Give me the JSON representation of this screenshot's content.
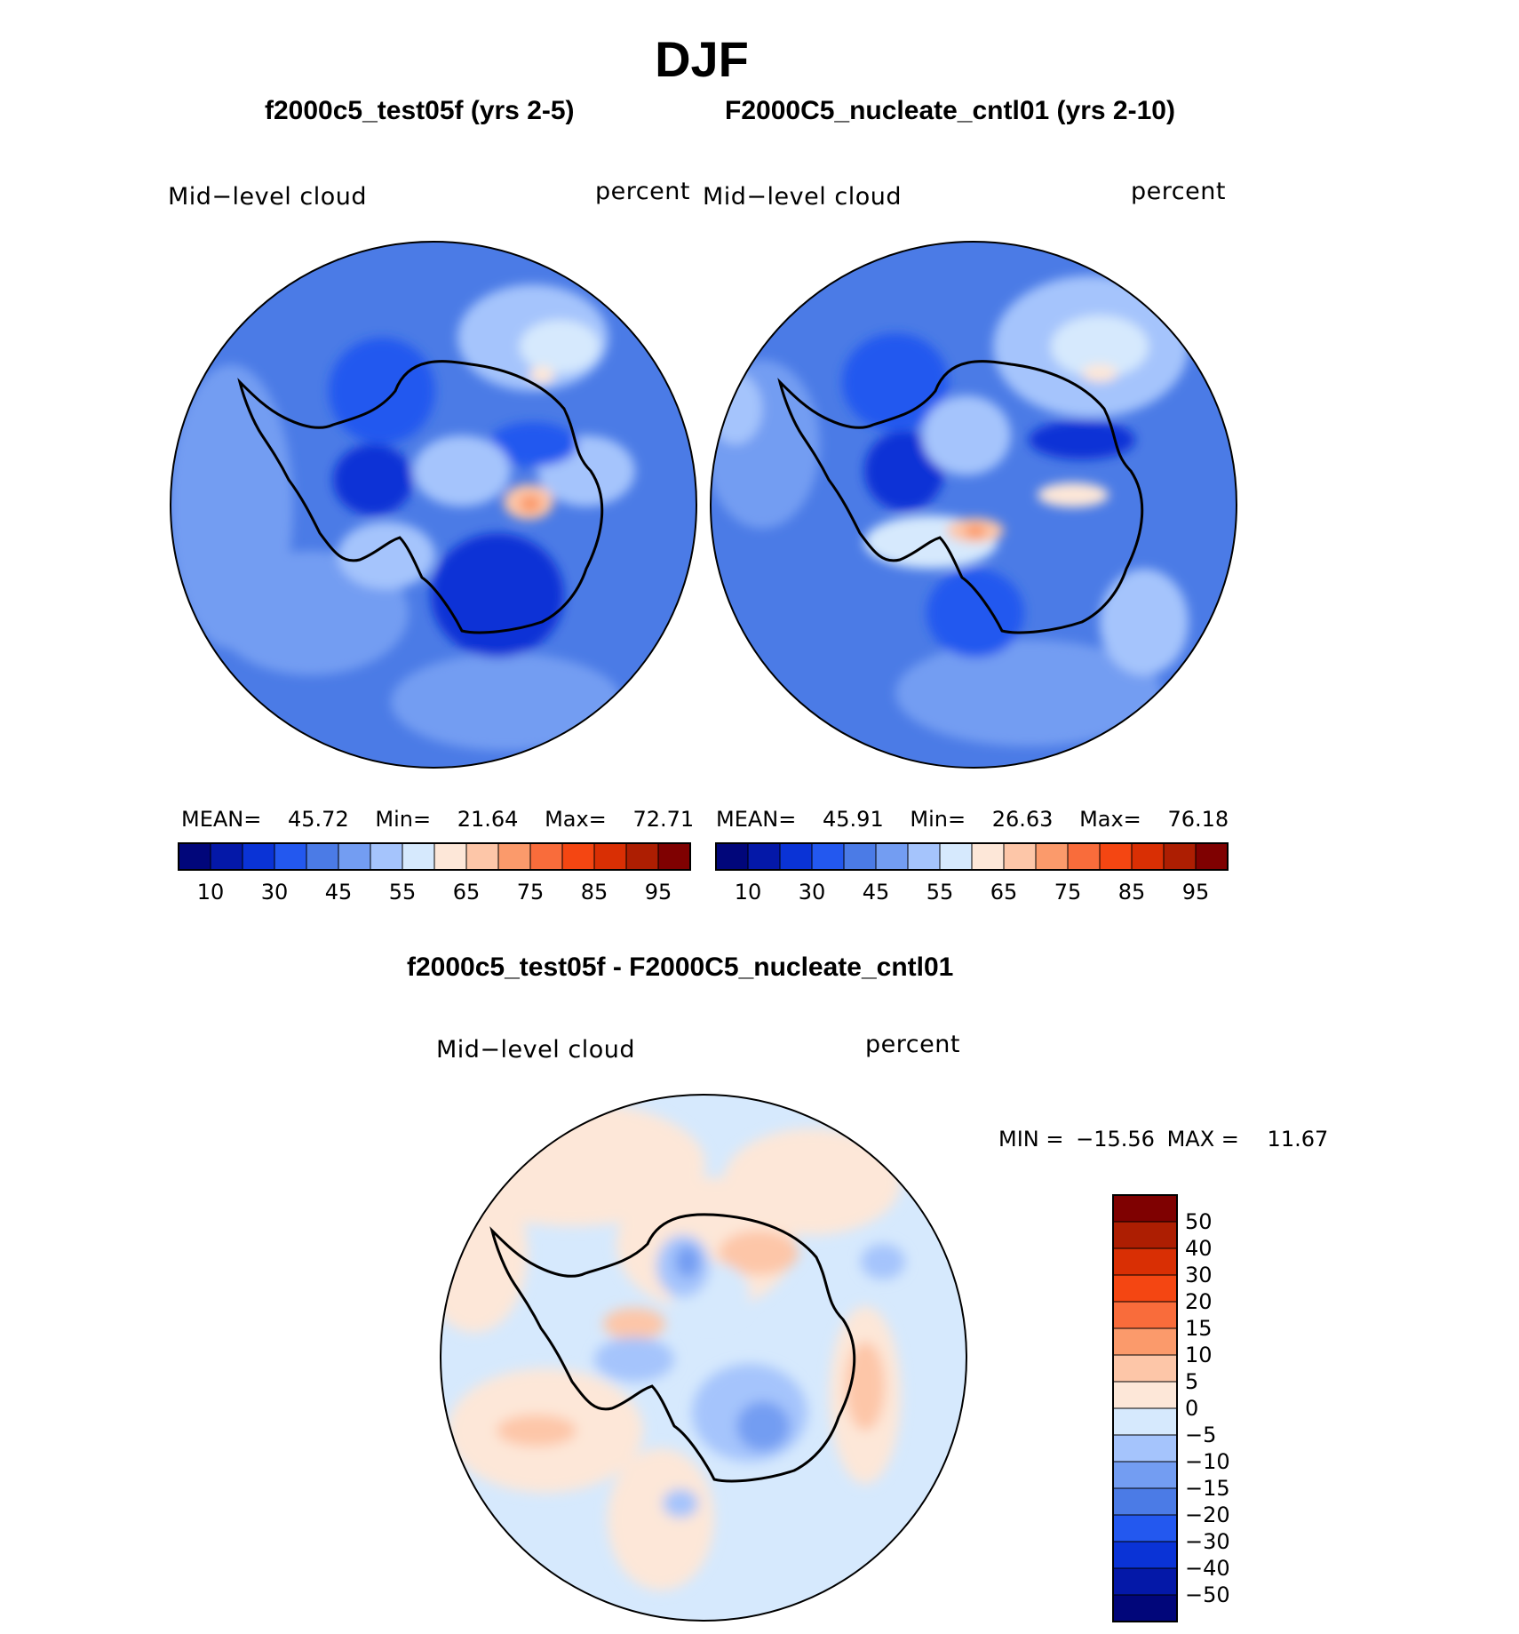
{
  "header": {
    "title": "DJF"
  },
  "panels": [
    {
      "title": "f2000c5_test05f (yrs 2-5)",
      "variable": "Mid−level cloud",
      "units": "percent",
      "mean_label": "MEAN=",
      "mean": "45.72",
      "min_label": "Min=",
      "min": "21.64",
      "max_label": "Max=",
      "max": "72.71",
      "background_color": "#4b7be6"
    },
    {
      "title": "F2000C5_nucleate_cntl01 (yrs 2-10)",
      "variable": "Mid−level cloud",
      "units": "percent",
      "mean_label": "MEAN=",
      "mean": "45.91",
      "min_label": "Min=",
      "min": "26.63",
      "max_label": "Max=",
      "max": "76.18",
      "background_color": "#4b7be6"
    }
  ],
  "horizontal_colorbar": {
    "colors": [
      "#01067a",
      "#0418a8",
      "#0a33d6",
      "#2358ef",
      "#4b7be6",
      "#739df2",
      "#a5c4fc",
      "#d6e9fd",
      "#fde7d8",
      "#fdc6a8",
      "#fb9a6b",
      "#f96c3b",
      "#f44612",
      "#d92f04",
      "#ad1e02",
      "#7f0101"
    ],
    "tick_labels": [
      "10",
      "30",
      "45",
      "55",
      "65",
      "75",
      "85",
      "95"
    ]
  },
  "difference": {
    "title": "f2000c5_test05f - F2000C5_nucleate_cntl01",
    "variable": "Mid−level cloud",
    "units": "percent",
    "min_label": "MIN =",
    "min": "−15.56",
    "max_label": "MAX =",
    "max": "11.67",
    "background_color": "#d6e9fd"
  },
  "vertical_colorbar": {
    "colors_top_to_bottom": [
      "#7f0101",
      "#ad1e02",
      "#d92f04",
      "#f44612",
      "#f96c3b",
      "#fb9a6b",
      "#fdc6a8",
      "#fde7d8",
      "#d6e9fd",
      "#a5c4fc",
      "#739df2",
      "#4b7be6",
      "#2358ef",
      "#0a33d6",
      "#0418a8",
      "#01067a"
    ],
    "tick_labels": [
      "50",
      "40",
      "30",
      "20",
      "15",
      "10",
      "5",
      "0",
      "−5",
      "−10",
      "−15",
      "−20",
      "−30",
      "−40",
      "−50"
    ]
  }
}
